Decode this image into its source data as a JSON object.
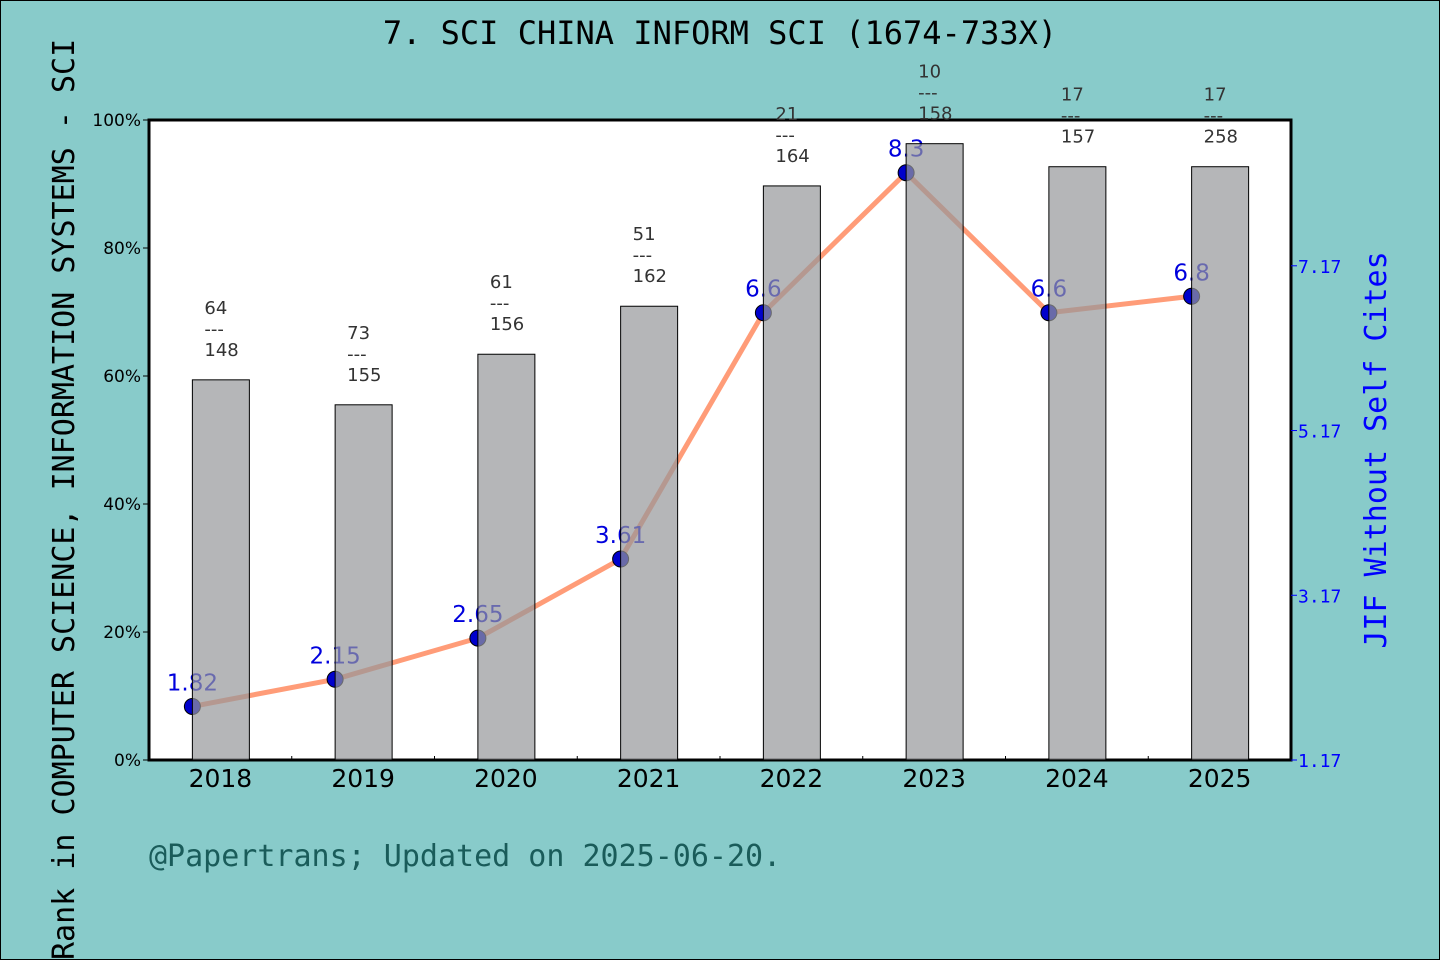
{
  "chart_data": {
    "type": "bar+line",
    "title": "7. SCI CHINA INFORM SCI (1674-733X)",
    "ylabel": "Rank in COMPUTER SCIENCE, INFORMATION SYSTEMS - SCI",
    "y2label": "JIF Without Self Cites",
    "categories": [
      "2018",
      "2019",
      "2020",
      "2021",
      "2022",
      "2023",
      "2024",
      "2025"
    ],
    "ylim": [
      0,
      100
    ],
    "yticks": [
      "0%",
      "20%",
      "40%",
      "60%",
      "80%",
      "100%"
    ],
    "y2lim": [
      1.17,
      8.94
    ],
    "y2ticks": [
      "1.17",
      "3.17",
      "5.17",
      "7.17"
    ],
    "bars": {
      "values_percent": [
        59.4,
        55.5,
        63.4,
        70.9,
        89.7,
        96.3,
        92.7,
        92.7
      ],
      "color": "#b8b9bb"
    },
    "rank_labels": [
      {
        "rank": "64",
        "sep": "---",
        "total": "148"
      },
      {
        "rank": "73",
        "sep": "---",
        "total": "155"
      },
      {
        "rank": "61",
        "sep": "---",
        "total": "156"
      },
      {
        "rank": "51",
        "sep": "---",
        "total": "162"
      },
      {
        "rank": "21",
        "sep": "---",
        "total": "164"
      },
      {
        "rank": "10",
        "sep": "---",
        "total": "158"
      },
      {
        "rank": "17",
        "sep": "---",
        "total": "157"
      },
      {
        "rank": "17",
        "sep": "---",
        "total": "258"
      }
    ],
    "line": {
      "values": [
        1.82,
        2.15,
        2.65,
        3.61,
        6.6,
        8.3,
        6.6,
        6.8
      ],
      "labels": [
        "1.82",
        "2.15",
        "2.65",
        "3.61",
        "6.6",
        "8.3",
        "6.6",
        "6.8"
      ],
      "color": "#ff9c78",
      "marker_color": "#0000cc"
    },
    "grid": false,
    "footer": "@Papertrans; Updated on 2025-06-20."
  }
}
